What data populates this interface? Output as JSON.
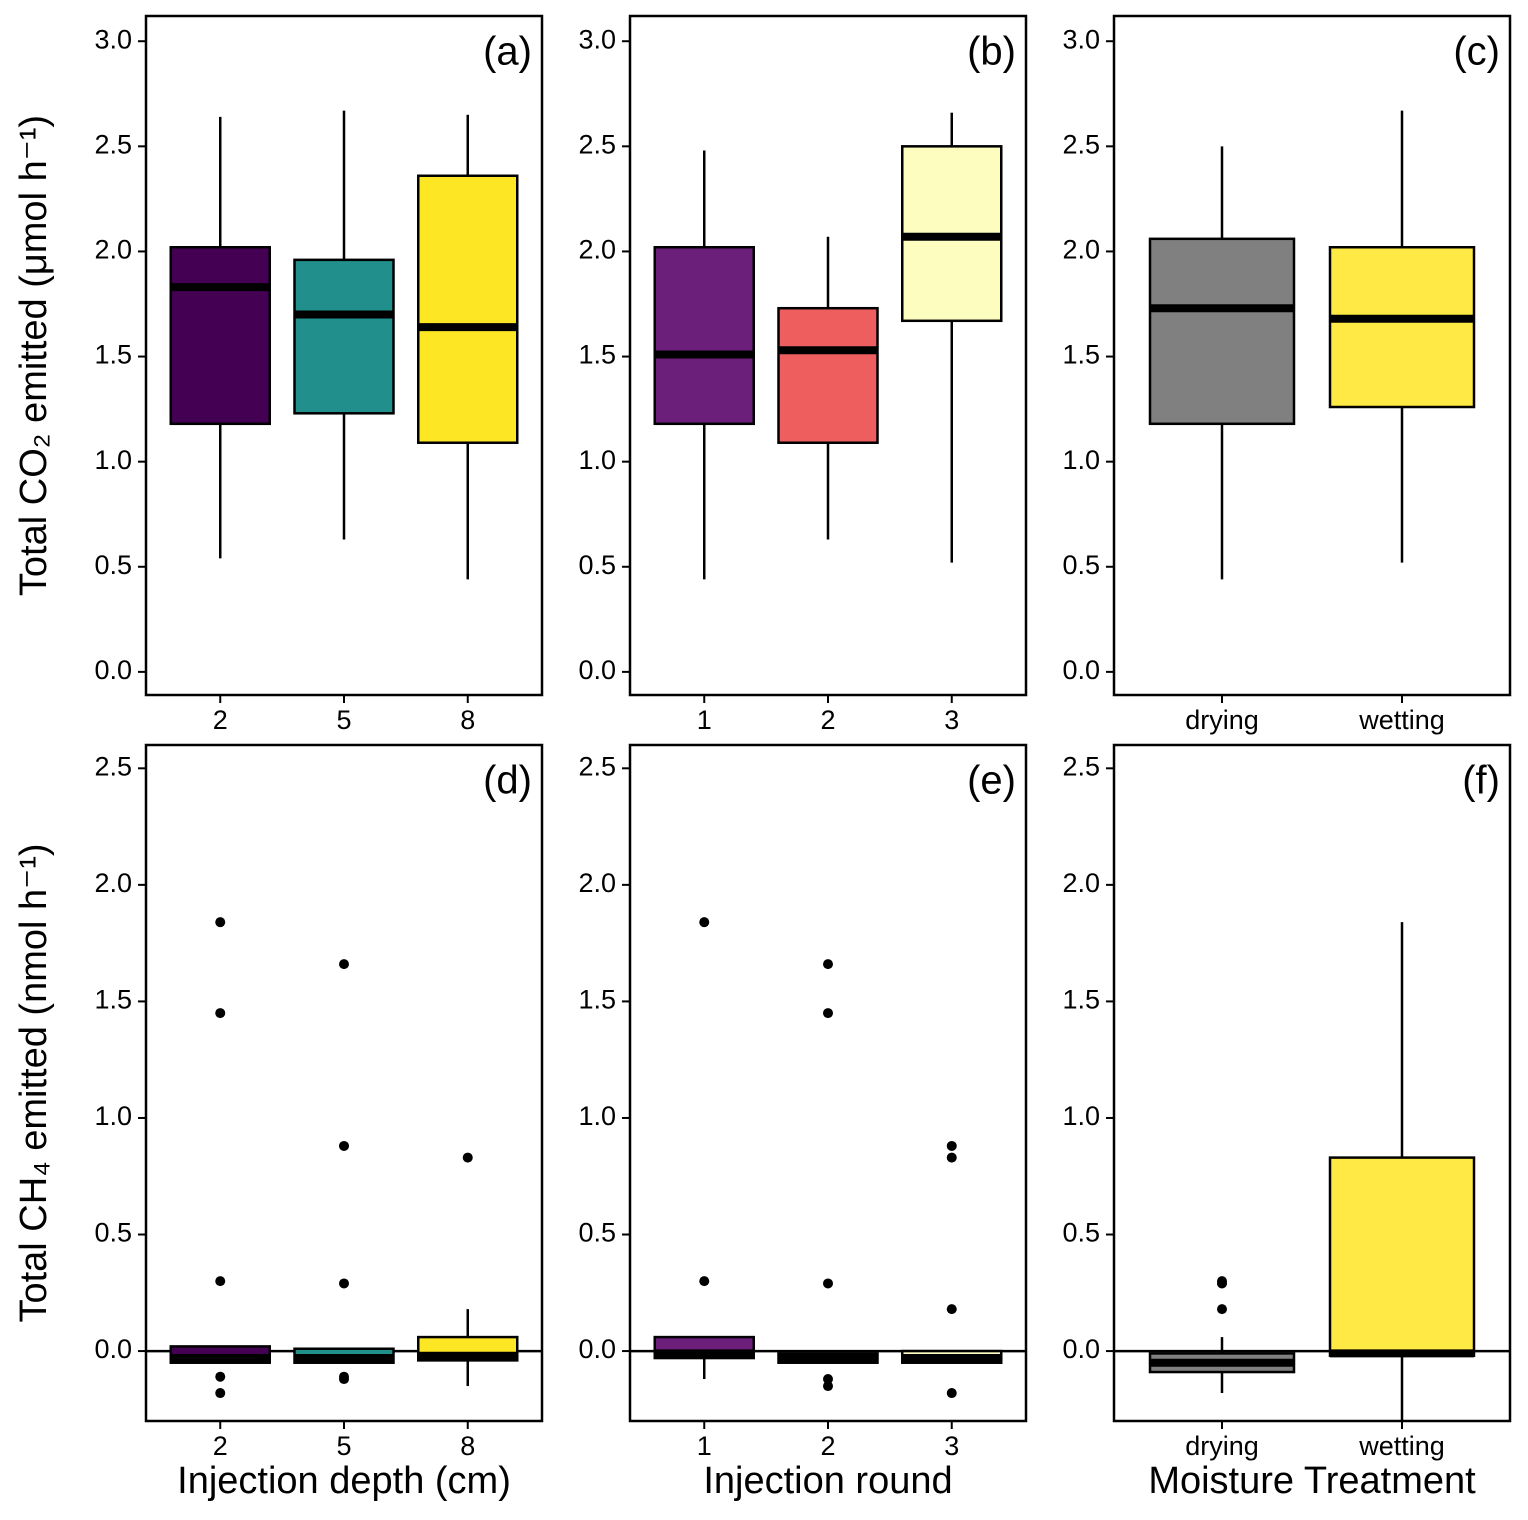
{
  "chart_data": [
    {
      "type": "box",
      "label": "(a)",
      "y_label": "Total CO₂ emitted (μmol h⁻¹)",
      "categories": [
        "2",
        "5",
        "8"
      ],
      "boxes": [
        {
          "color": "#440154",
          "whisker_low": 0.54,
          "q1": 1.18,
          "median": 1.83,
          "q3": 2.02,
          "whisker_high": 2.64,
          "outliers": []
        },
        {
          "color": "#21908c",
          "whisker_low": 0.63,
          "q1": 1.23,
          "median": 1.7,
          "q3": 1.96,
          "whisker_high": 2.67,
          "outliers": []
        },
        {
          "color": "#fde725",
          "whisker_low": 0.44,
          "q1": 1.09,
          "median": 1.64,
          "q3": 2.36,
          "whisker_high": 2.65,
          "outliers": []
        }
      ],
      "ylim": [
        -0.11,
        3.12
      ],
      "yticks": [
        {
          "value": 0,
          "label": "0.0"
        },
        0.5,
        {
          "value": 1,
          "label": "1.0"
        },
        1.5,
        {
          "value": 2,
          "label": "2.0"
        },
        2.5,
        {
          "value": 3,
          "label": "3.0"
        }
      ]
    },
    {
      "type": "box",
      "label": "(b)",
      "categories": [
        "1",
        "2",
        "3"
      ],
      "boxes": [
        {
          "color": "#6b1f7b",
          "whisker_low": 0.44,
          "q1": 1.18,
          "median": 1.51,
          "q3": 2.02,
          "whisker_high": 2.48,
          "outliers": []
        },
        {
          "color": "#ef5e5e",
          "whisker_low": 0.63,
          "q1": 1.09,
          "median": 1.53,
          "q3": 1.73,
          "whisker_high": 2.07,
          "outliers": []
        },
        {
          "color": "#fcfdbf",
          "whisker_low": 0.52,
          "q1": 1.67,
          "median": 2.07,
          "q3": 2.5,
          "whisker_high": 2.66,
          "outliers": []
        }
      ],
      "ylim": [
        -0.11,
        3.12
      ],
      "yticks": [
        {
          "value": 0,
          "label": "0.0"
        },
        0.5,
        {
          "value": 1,
          "label": "1.0"
        },
        1.5,
        {
          "value": 2,
          "label": "2.0"
        },
        2.5,
        {
          "value": 3,
          "label": "3.0"
        }
      ]
    },
    {
      "type": "box",
      "label": "(c)",
      "categories": [
        "drying",
        "wetting"
      ],
      "boxes": [
        {
          "color": "#808080",
          "whisker_low": 0.44,
          "q1": 1.18,
          "median": 1.73,
          "q3": 2.06,
          "whisker_high": 2.5,
          "outliers": []
        },
        {
          "color": "#ffe945",
          "whisker_low": 0.52,
          "q1": 1.26,
          "median": 1.68,
          "q3": 2.02,
          "whisker_high": 2.67,
          "outliers": []
        }
      ],
      "ylim": [
        -0.11,
        3.12
      ],
      "yticks": [
        {
          "value": 0,
          "label": "0.0"
        },
        0.5,
        {
          "value": 1,
          "label": "1.0"
        },
        1.5,
        {
          "value": 2,
          "label": "2.0"
        },
        2.5,
        {
          "value": 3,
          "label": "3.0"
        }
      ]
    },
    {
      "type": "box",
      "label": "(d)",
      "y_label": "Total CH₄ emitted (nmol h⁻¹)",
      "x_label": "Injection depth (cm)",
      "categories": [
        "2",
        "5",
        "8"
      ],
      "boxes": [
        {
          "color": "#440154",
          "whisker_low": -0.05,
          "q1": -0.05,
          "median": -0.03,
          "q3": 0.02,
          "whisker_high": 0.02,
          "outliers": [
            1.84,
            1.45,
            0.3,
            -0.11,
            -0.18
          ]
        },
        {
          "color": "#21908c",
          "whisker_low": -0.05,
          "q1": -0.05,
          "median": -0.03,
          "q3": 0.01,
          "whisker_high": 0.01,
          "outliers": [
            1.66,
            0.88,
            0.29,
            -0.11,
            -0.12
          ]
        },
        {
          "color": "#fde725",
          "whisker_low": -0.15,
          "q1": -0.04,
          "median": -0.02,
          "q3": 0.06,
          "whisker_high": 0.18,
          "outliers": [
            0.83
          ]
        }
      ],
      "ylim": [
        -0.3,
        2.6
      ],
      "hline": 0,
      "yticks": [
        {
          "value": 0,
          "label": "0.0"
        },
        0.5,
        {
          "value": 1,
          "label": "1.0"
        },
        1.5,
        {
          "value": 2,
          "label": "2.0"
        },
        2.5
      ]
    },
    {
      "type": "box",
      "label": "(e)",
      "x_label": "Injection round",
      "categories": [
        "1",
        "2",
        "3"
      ],
      "boxes": [
        {
          "color": "#6b1f7b",
          "whisker_low": -0.12,
          "q1": -0.03,
          "median": -0.01,
          "q3": 0.06,
          "whisker_high": 0.06,
          "outliers": [
            1.84,
            0.3
          ]
        },
        {
          "color": "#ef5e5e",
          "whisker_low": -0.05,
          "q1": -0.05,
          "median": -0.03,
          "q3": -0.01,
          "whisker_high": -0.01,
          "outliers": [
            1.66,
            1.45,
            0.29,
            -0.12,
            -0.15
          ]
        },
        {
          "color": "#fcfdbf",
          "whisker_low": -0.05,
          "q1": -0.05,
          "median": -0.03,
          "q3": 0.0,
          "whisker_high": 0.0,
          "outliers": [
            0.88,
            0.83,
            0.18,
            -0.18
          ]
        }
      ],
      "ylim": [
        -0.3,
        2.6
      ],
      "hline": 0,
      "yticks": [
        {
          "value": 0,
          "label": "0.0"
        },
        0.5,
        {
          "value": 1,
          "label": "1.0"
        },
        1.5,
        {
          "value": 2,
          "label": "2.0"
        },
        2.5
      ]
    },
    {
      "type": "box",
      "label": "(f)",
      "x_label": "Moisture Treatment",
      "categories": [
        "drying",
        "wetting"
      ],
      "boxes": [
        {
          "color": "#808080",
          "whisker_low": -0.18,
          "q1": -0.09,
          "median": -0.05,
          "q3": -0.01,
          "whisker_high": 0.06,
          "outliers": [
            0.3,
            0.29,
            0.18
          ]
        },
        {
          "color": "#ffe945",
          "whisker_low": -0.3,
          "q1": -0.02,
          "median": -0.01,
          "q3": 0.83,
          "whisker_high": 1.84,
          "outliers": []
        }
      ],
      "ylim": [
        -0.3,
        2.6
      ],
      "hline": 0,
      "yticks": [
        {
          "value": 0,
          "label": "0.0"
        },
        0.5,
        {
          "value": 1,
          "label": "1.0"
        },
        1.5,
        {
          "value": 2,
          "label": "2.0"
        },
        2.5
      ]
    }
  ]
}
